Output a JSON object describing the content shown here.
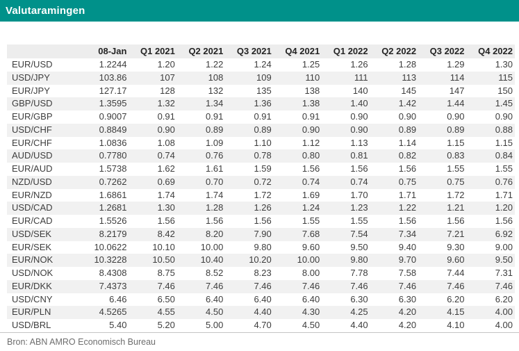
{
  "header": {
    "title": "Valutaramingen"
  },
  "footer": {
    "source": "Bron: ABN AMRO Economisch Bureau"
  },
  "colors": {
    "accent_teal": "#00918a",
    "title_text": "#ffffff",
    "header_row_bg": "#ededed",
    "row_stripe_bg": "#f1f1f1",
    "body_text": "#3d3d3d",
    "source_text": "#6d6d6d",
    "divider": "#c4c4c4"
  },
  "chart_data": {
    "type": "table",
    "title": "Valutaramingen",
    "source": "Bron: ABN AMRO Economisch Bureau",
    "columns": [
      "",
      "08-Jan",
      "Q1 2021",
      "Q2 2021",
      "Q3 2021",
      "Q4 2021",
      "Q1 2022",
      "Q2 2022",
      "Q3 2022",
      "Q4 2022"
    ],
    "rows": [
      {
        "pair": "EUR/USD",
        "values": [
          "1.2244",
          "1.20",
          "1.22",
          "1.24",
          "1.25",
          "1.26",
          "1.28",
          "1.29",
          "1.30"
        ]
      },
      {
        "pair": "USD/JPY",
        "values": [
          "103.86",
          "107",
          "108",
          "109",
          "110",
          "111",
          "113",
          "114",
          "115"
        ]
      },
      {
        "pair": "EUR/JPY",
        "values": [
          "127.17",
          "128",
          "132",
          "135",
          "138",
          "140",
          "145",
          "147",
          "150"
        ]
      },
      {
        "pair": "GBP/USD",
        "values": [
          "1.3595",
          "1.32",
          "1.34",
          "1.36",
          "1.38",
          "1.40",
          "1.42",
          "1.44",
          "1.45"
        ]
      },
      {
        "pair": "EUR/GBP",
        "values": [
          "0.9007",
          "0.91",
          "0.91",
          "0.91",
          "0.91",
          "0.90",
          "0.90",
          "0.90",
          "0.90"
        ]
      },
      {
        "pair": "USD/CHF",
        "values": [
          "0.8849",
          "0.90",
          "0.89",
          "0.89",
          "0.90",
          "0.90",
          "0.89",
          "0.89",
          "0.88"
        ]
      },
      {
        "pair": "EUR/CHF",
        "values": [
          "1.0836",
          "1.08",
          "1.09",
          "1.10",
          "1.12",
          "1.13",
          "1.14",
          "1.15",
          "1.15"
        ]
      },
      {
        "pair": "AUD/USD",
        "values": [
          "0.7780",
          "0.74",
          "0.76",
          "0.78",
          "0.80",
          "0.81",
          "0.82",
          "0.83",
          "0.84"
        ]
      },
      {
        "pair": "EUR/AUD",
        "values": [
          "1.5738",
          "1.62",
          "1.61",
          "1.59",
          "1.56",
          "1.56",
          "1.56",
          "1.55",
          "1.55"
        ]
      },
      {
        "pair": "NZD/USD",
        "values": [
          "0.7262",
          "0.69",
          "0.70",
          "0.72",
          "0.74",
          "0.74",
          "0.75",
          "0.75",
          "0.76"
        ]
      },
      {
        "pair": "EUR/NZD",
        "values": [
          "1.6861",
          "1.74",
          "1.74",
          "1.72",
          "1.69",
          "1.70",
          "1.71",
          "1.72",
          "1.71"
        ]
      },
      {
        "pair": "USD/CAD",
        "values": [
          "1.2681",
          "1.30",
          "1.28",
          "1.26",
          "1.24",
          "1.23",
          "1.22",
          "1.21",
          "1.20"
        ]
      },
      {
        "pair": "EUR/CAD",
        "values": [
          "1.5526",
          "1.56",
          "1.56",
          "1.56",
          "1.55",
          "1.55",
          "1.56",
          "1.56",
          "1.56"
        ]
      },
      {
        "pair": "USD/SEK",
        "values": [
          "8.2179",
          "8.42",
          "8.20",
          "7.90",
          "7.68",
          "7.54",
          "7.34",
          "7.21",
          "6.92"
        ]
      },
      {
        "pair": "EUR/SEK",
        "values": [
          "10.0622",
          "10.10",
          "10.00",
          "9.80",
          "9.60",
          "9.50",
          "9.40",
          "9.30",
          "9.00"
        ]
      },
      {
        "pair": "EUR/NOK",
        "values": [
          "10.3228",
          "10.50",
          "10.40",
          "10.20",
          "10.00",
          "9.80",
          "9.70",
          "9.60",
          "9.50"
        ]
      },
      {
        "pair": "USD/NOK",
        "values": [
          "8.4308",
          "8.75",
          "8.52",
          "8.23",
          "8.00",
          "7.78",
          "7.58",
          "7.44",
          "7.31"
        ]
      },
      {
        "pair": "EUR/DKK",
        "values": [
          "7.4373",
          "7.46",
          "7.46",
          "7.46",
          "7.46",
          "7.46",
          "7.46",
          "7.46",
          "7.46"
        ]
      },
      {
        "pair": "USD/CNY",
        "values": [
          "6.46",
          "6.50",
          "6.40",
          "6.40",
          "6.40",
          "6.30",
          "6.30",
          "6.20",
          "6.20"
        ]
      },
      {
        "pair": "EUR/PLN",
        "values": [
          "4.5265",
          "4.55",
          "4.50",
          "4.40",
          "4.30",
          "4.25",
          "4.20",
          "4.15",
          "4.00"
        ]
      },
      {
        "pair": "USD/BRL",
        "values": [
          "5.40",
          "5.20",
          "5.00",
          "4.70",
          "4.50",
          "4.40",
          "4.20",
          "4.10",
          "4.00"
        ]
      }
    ]
  }
}
